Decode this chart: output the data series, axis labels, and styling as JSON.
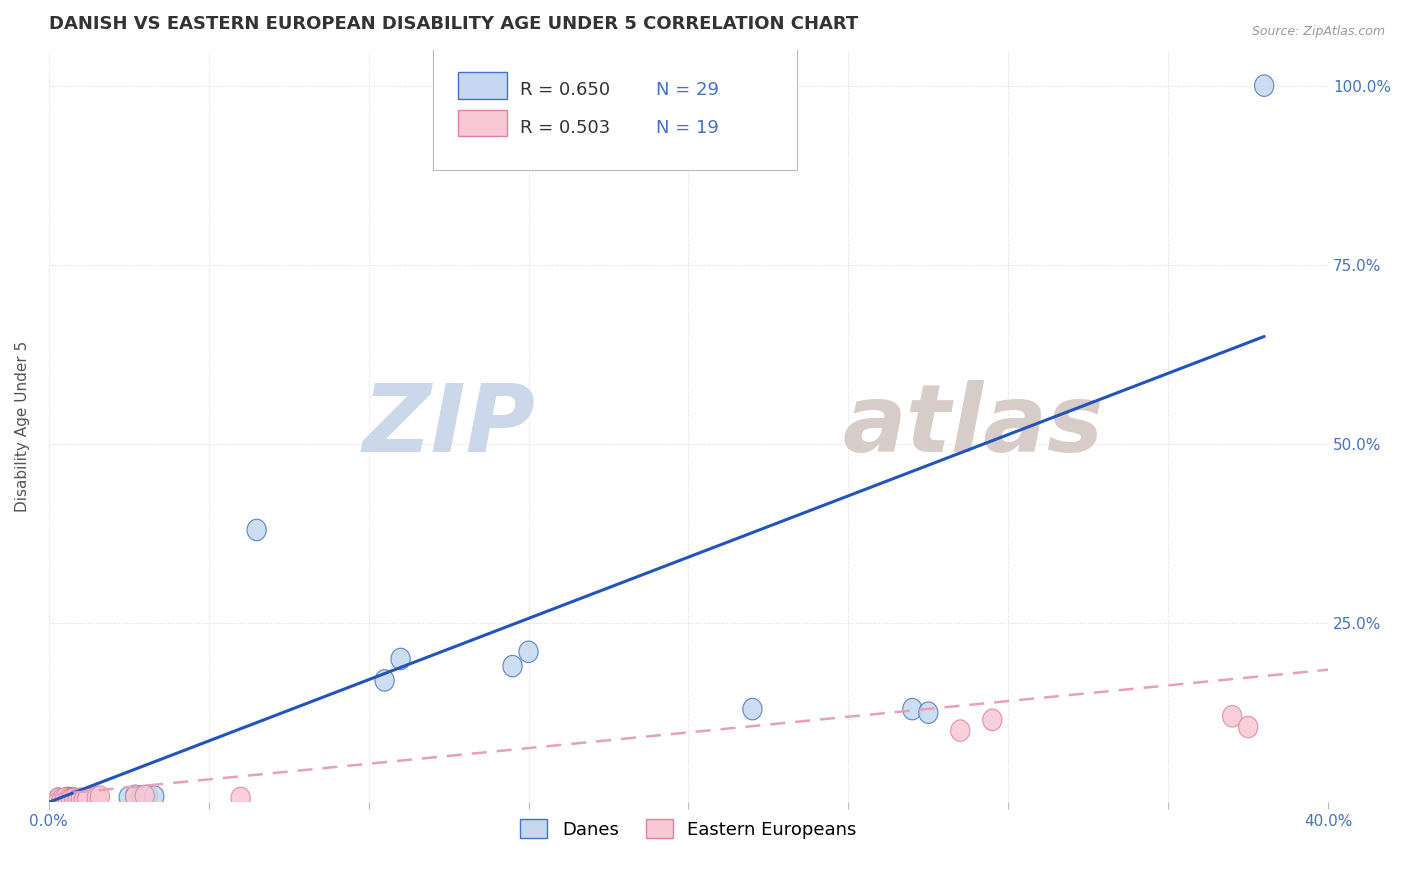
{
  "title": "DANISH VS EASTERN EUROPEAN DISABILITY AGE UNDER 5 CORRELATION CHART",
  "source": "Source: ZipAtlas.com",
  "ylabel": "Disability Age Under 5",
  "xlim": [
    0.0,
    0.4
  ],
  "ylim": [
    0.0,
    1.05
  ],
  "xtick_pos": [
    0.0,
    0.05,
    0.1,
    0.15,
    0.2,
    0.25,
    0.3,
    0.35,
    0.4
  ],
  "xtick_labels": [
    "0.0%",
    "",
    "",
    "",
    "",
    "",
    "",
    "",
    "40.0%"
  ],
  "ytick_pos": [
    0.0,
    0.25,
    0.5,
    0.75,
    1.0
  ],
  "ytick_labels": [
    "",
    "25.0%",
    "50.0%",
    "75.0%",
    "100.0%"
  ],
  "R_danes": 0.65,
  "N_danes": 29,
  "R_east": 0.503,
  "N_east": 19,
  "danes_color": "#c5d8f0",
  "danes_edge_color": "#4472c4",
  "east_color": "#f8c8d4",
  "east_edge_color": "#e080a0",
  "danes_line_color": "#2255bb",
  "east_line_color": "#e8a0b8",
  "background_color": "#ffffff",
  "grid_color": "#cccccc",
  "title_color": "#333333",
  "axis_label_color": "#555555",
  "tick_color": "#4472c4",
  "danes_scatter_x": [
    0.003,
    0.004,
    0.005,
    0.006,
    0.006,
    0.007,
    0.007,
    0.008,
    0.008,
    0.009,
    0.01,
    0.01,
    0.011,
    0.012,
    0.012,
    0.025,
    0.027,
    0.029,
    0.031,
    0.033,
    0.065,
    0.105,
    0.11,
    0.145,
    0.15,
    0.22,
    0.27,
    0.275,
    0.38
  ],
  "danes_scatter_y": [
    0.005,
    0.003,
    0.004,
    0.006,
    0.003,
    0.005,
    0.003,
    0.005,
    0.003,
    0.004,
    0.004,
    0.003,
    0.004,
    0.003,
    0.005,
    0.007,
    0.009,
    0.008,
    0.009,
    0.008,
    0.38,
    0.17,
    0.2,
    0.19,
    0.21,
    0.13,
    0.13,
    0.125,
    1.0
  ],
  "east_scatter_x": [
    0.003,
    0.004,
    0.005,
    0.006,
    0.007,
    0.008,
    0.009,
    0.01,
    0.011,
    0.012,
    0.015,
    0.016,
    0.027,
    0.03,
    0.06,
    0.285,
    0.295,
    0.37,
    0.375
  ],
  "east_scatter_y": [
    0.005,
    0.004,
    0.005,
    0.003,
    0.004,
    0.005,
    0.004,
    0.005,
    0.004,
    0.005,
    0.007,
    0.008,
    0.008,
    0.009,
    0.006,
    0.1,
    0.115,
    0.12,
    0.105
  ],
  "blue_line_x0": 0.0,
  "blue_line_y0": 0.0,
  "blue_line_x1": 0.38,
  "blue_line_y1": 0.65,
  "pink_line_x0": 0.0,
  "pink_line_y0": 0.01,
  "pink_line_x1": 0.4,
  "pink_line_y1": 0.185,
  "title_fontsize": 13,
  "axis_label_fontsize": 11,
  "tick_fontsize": 11,
  "legend_fontsize": 13,
  "source_fontsize": 9,
  "watermark_zip_color": "#ccd8ea",
  "watermark_atlas_color": "#d8ccc8"
}
